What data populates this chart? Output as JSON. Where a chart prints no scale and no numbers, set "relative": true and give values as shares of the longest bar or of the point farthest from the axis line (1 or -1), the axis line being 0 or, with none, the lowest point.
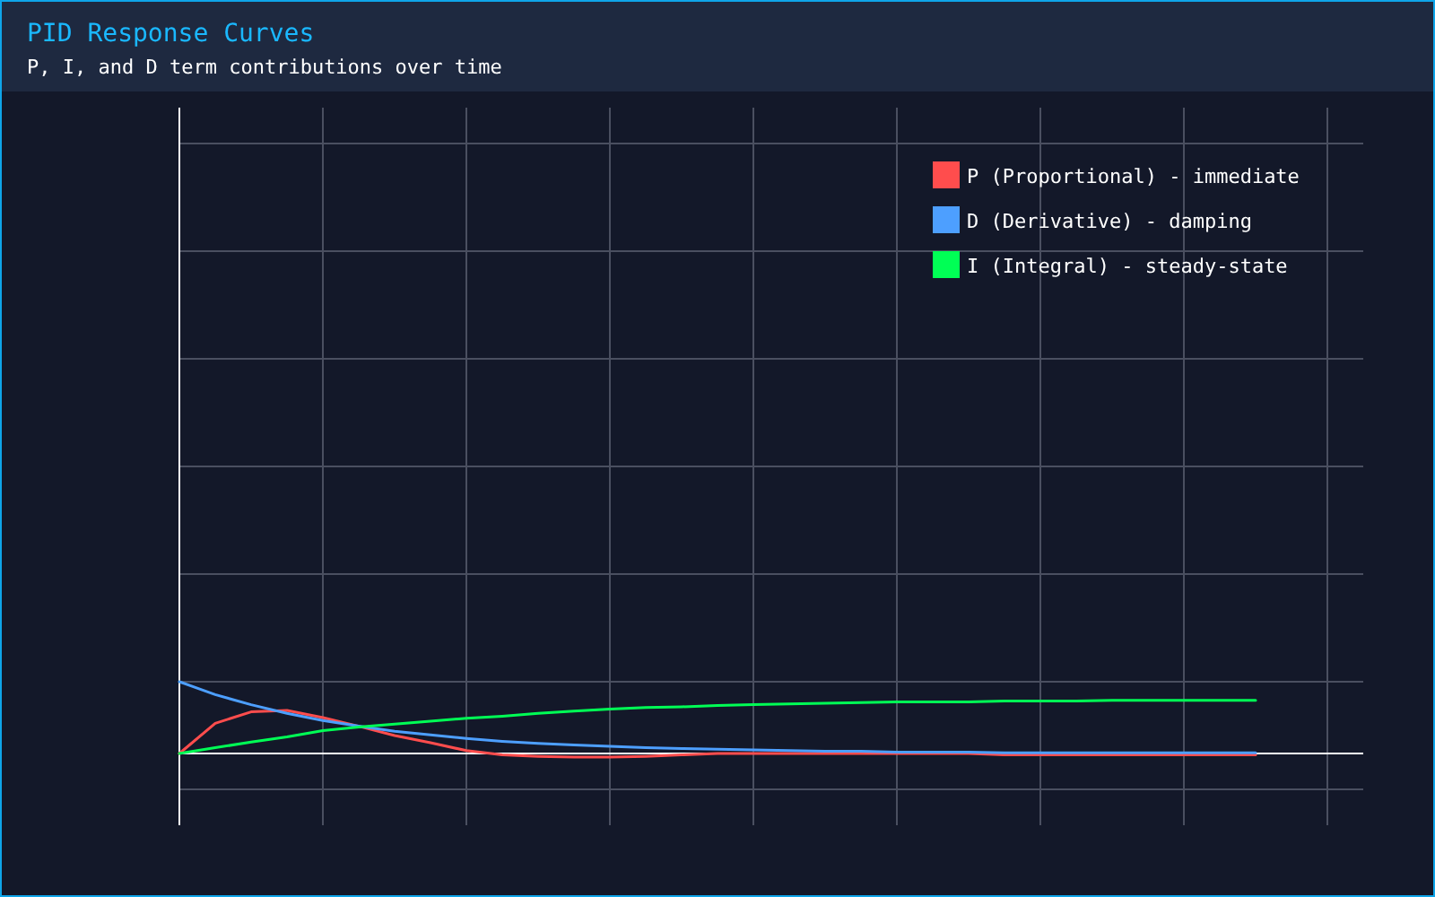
{
  "chart_data": {
    "type": "line",
    "title": "PID Response Curves",
    "subtitle": "P, I, and D term contributions over time",
    "relative": true,
    "grid": true,
    "legend": "top right",
    "categories": [
      null,
      null,
      null,
      null,
      null,
      null,
      null,
      null,
      null,
      null,
      null,
      null,
      null,
      null,
      null,
      null,
      null,
      null,
      null,
      null,
      null,
      null,
      null,
      null,
      null,
      null,
      null,
      null,
      null,
      null,
      null
    ],
    "series": [
      {
        "name": "P (Proportional) - immediate",
        "color": "#ff4d4d",
        "values": [
          0,
          0.42,
          0.58,
          0.6,
          0.5,
          0.38,
          0.25,
          0.15,
          0.04,
          -0.02,
          -0.04,
          -0.05,
          -0.05,
          -0.04,
          -0.02,
          0,
          0,
          0,
          0,
          0,
          0,
          0,
          0,
          -0.02,
          -0.02,
          -0.02,
          -0.02,
          -0.02,
          -0.02,
          -0.02,
          -0.02
        ]
      },
      {
        "name": "D (Derivative) - damping",
        "color": "#4d9fff",
        "values": [
          1,
          0.82,
          0.68,
          0.56,
          0.46,
          0.38,
          0.31,
          0.26,
          0.21,
          0.17,
          0.14,
          0.12,
          0.1,
          0.08,
          0.07,
          0.06,
          0.05,
          0.04,
          0.03,
          0.03,
          0.02,
          0.02,
          0.02,
          0.01,
          0.01,
          0.01,
          0.01,
          0.01,
          0.01,
          0.01,
          0.01
        ]
      },
      {
        "name": "I (Integral) - steady-state",
        "color": "#00ff55",
        "values": [
          0,
          0.08,
          0.16,
          0.23,
          0.32,
          0.37,
          0.41,
          0.45,
          0.49,
          0.52,
          0.56,
          0.59,
          0.62,
          0.64,
          0.65,
          0.67,
          0.68,
          0.69,
          0.7,
          0.71,
          0.72,
          0.72,
          0.72,
          0.73,
          0.73,
          0.73,
          0.74,
          0.74,
          0.74,
          0.74,
          0.74
        ]
      }
    ]
  }
}
